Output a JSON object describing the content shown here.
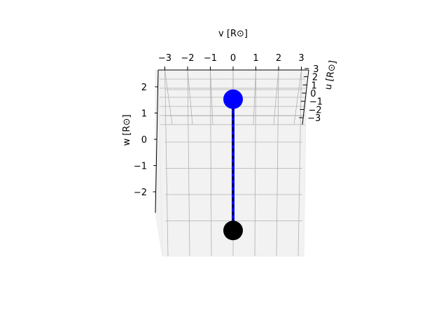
{
  "chart_data": {
    "type": "scatter",
    "projection": "3d",
    "title": "",
    "axes": {
      "v": {
        "label": "v [R⊙]",
        "ticks": [
          -3,
          -2,
          -1,
          0,
          1,
          2,
          3
        ],
        "tick_labels": [
          "−3",
          "−2",
          "−1",
          "0",
          "1",
          "2",
          "3"
        ]
      },
      "w": {
        "label": "w [R⊙]",
        "ticks": [
          2,
          1,
          0,
          -1,
          -2
        ],
        "tick_labels": [
          "2",
          "1",
          "0",
          "−1",
          "−2"
        ]
      },
      "u": {
        "label": "u [R⊙]",
        "ticks": [
          3,
          2,
          1,
          0,
          -1,
          -2,
          -3
        ],
        "tick_labels": [
          "3",
          "2",
          "1",
          "0",
          "−1",
          "−2",
          "−3"
        ]
      }
    },
    "grid": true,
    "legend": "none",
    "series": [
      {
        "marker": "circle",
        "color": "#0000ff",
        "points": [
          {
            "v": 0,
            "w": 1.5
          }
        ]
      },
      {
        "marker": "circle",
        "color": "#000000",
        "points": [
          {
            "v": 0,
            "w": -3.5
          }
        ]
      },
      {
        "style": "solid",
        "color": "#0000ff",
        "points": [
          {
            "v": 0,
            "w": 1.5
          },
          {
            "v": 0,
            "w": -3.5
          }
        ]
      },
      {
        "style": "dashed",
        "color": "#000000",
        "points": [
          {
            "v": 0,
            "w": 1.5
          },
          {
            "v": 0,
            "w": -3.5
          }
        ]
      }
    ]
  }
}
